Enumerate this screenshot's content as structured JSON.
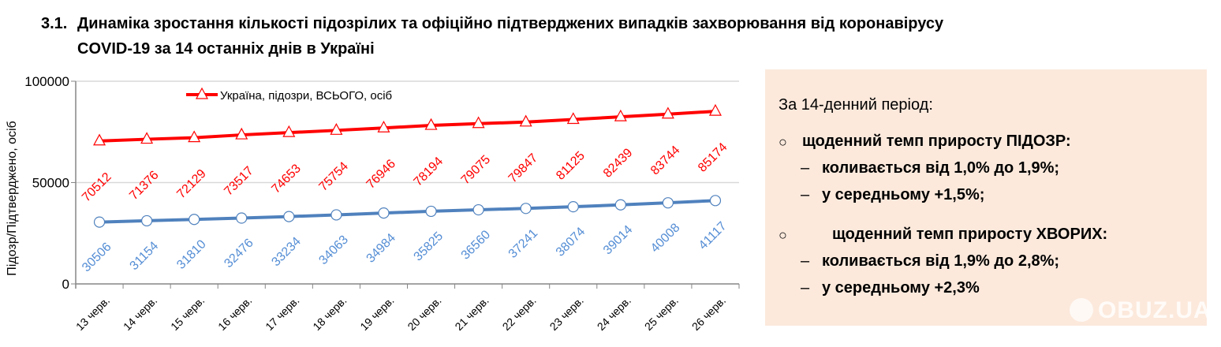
{
  "heading": {
    "number": "3.1.",
    "line1": "Динаміка зростання кількості підозрілих та офіційно підтверджених випадків захворювання від коронавірусу",
    "line2": "COVID-19 за 14 останніх днів в Україні"
  },
  "chart_data": {
    "type": "line",
    "ylabel": "Підозр/Підтверджено, осіб",
    "ylim": [
      0,
      100000
    ],
    "yticks": [
      "0",
      "50000",
      "100000"
    ],
    "grid": true,
    "legend_placement": "top",
    "categories": [
      "13 черв.",
      "14 черв.",
      "15 черв.",
      "16 черв.",
      "17 черв.",
      "18 черв.",
      "19 черв.",
      "20 черв.",
      "21 черв.",
      "22 черв.",
      "23 черв.",
      "24 черв.",
      "25 черв.",
      "26 черв."
    ],
    "series": [
      {
        "name": "Україна, підозри, ВСЬОГО, осіб",
        "color": "#ff0000",
        "marker": "triangle",
        "values": [
          70512,
          71376,
          72129,
          73517,
          74653,
          75754,
          76946,
          78194,
          79075,
          79847,
          81125,
          82439,
          83744,
          85174
        ]
      },
      {
        "color": "#4f81bd",
        "label_color": "#558ed5",
        "marker": "circle",
        "values": [
          30506,
          31154,
          31810,
          32476,
          33234,
          34063,
          34984,
          35825,
          36560,
          37241,
          38074,
          39014,
          40008,
          41117
        ]
      }
    ]
  },
  "summary": {
    "intro": "За 14-денний період:",
    "bullet_icon": "circle-bullet-icon",
    "dash": "–",
    "groups": [
      {
        "bullet": "○",
        "heading": "щоденний темп приросту ПІДОЗР:",
        "items": [
          "коливається від 1,0% до 1,9%;",
          "у середньому +1,5%;"
        ]
      },
      {
        "bullet": "○",
        "heading": "щоденний темп приросту ХВОРИХ:",
        "items": [
          "коливається від 1,9% до 2,8%;",
          "у середньому +2,3%"
        ]
      }
    ],
    "background": "#fce9dc"
  },
  "watermark": "OBUZ.UA"
}
